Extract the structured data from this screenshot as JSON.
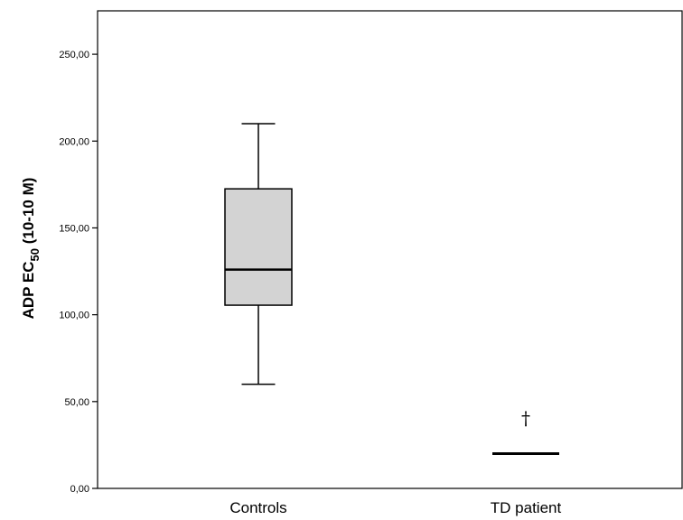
{
  "chart_data": {
    "type": "box",
    "ylabel": {
      "main": "ADP EC",
      "subscript": "50",
      "units": " (10-10 M)"
    },
    "ylim": [
      0,
      275
    ],
    "yticks": [
      {
        "value": 0,
        "label": "0,00"
      },
      {
        "value": 50,
        "label": "50,00"
      },
      {
        "value": 100,
        "label": "100,00"
      },
      {
        "value": 150,
        "label": "150,00"
      },
      {
        "value": 200,
        "label": "200,00"
      },
      {
        "value": 250,
        "label": "250,00"
      }
    ],
    "categories": [
      "Controls",
      "TD patient"
    ],
    "boxes": [
      {
        "category": "Controls",
        "min": 60,
        "q1": 105.5,
        "median": 126,
        "q3": 172.5,
        "max": 210,
        "fill": "#d3d3d3"
      },
      {
        "category": "TD patient",
        "value": 20,
        "single": true
      }
    ],
    "annotations": [
      {
        "category": "TD patient",
        "text": "†",
        "y": 40
      }
    ],
    "grid": false
  }
}
